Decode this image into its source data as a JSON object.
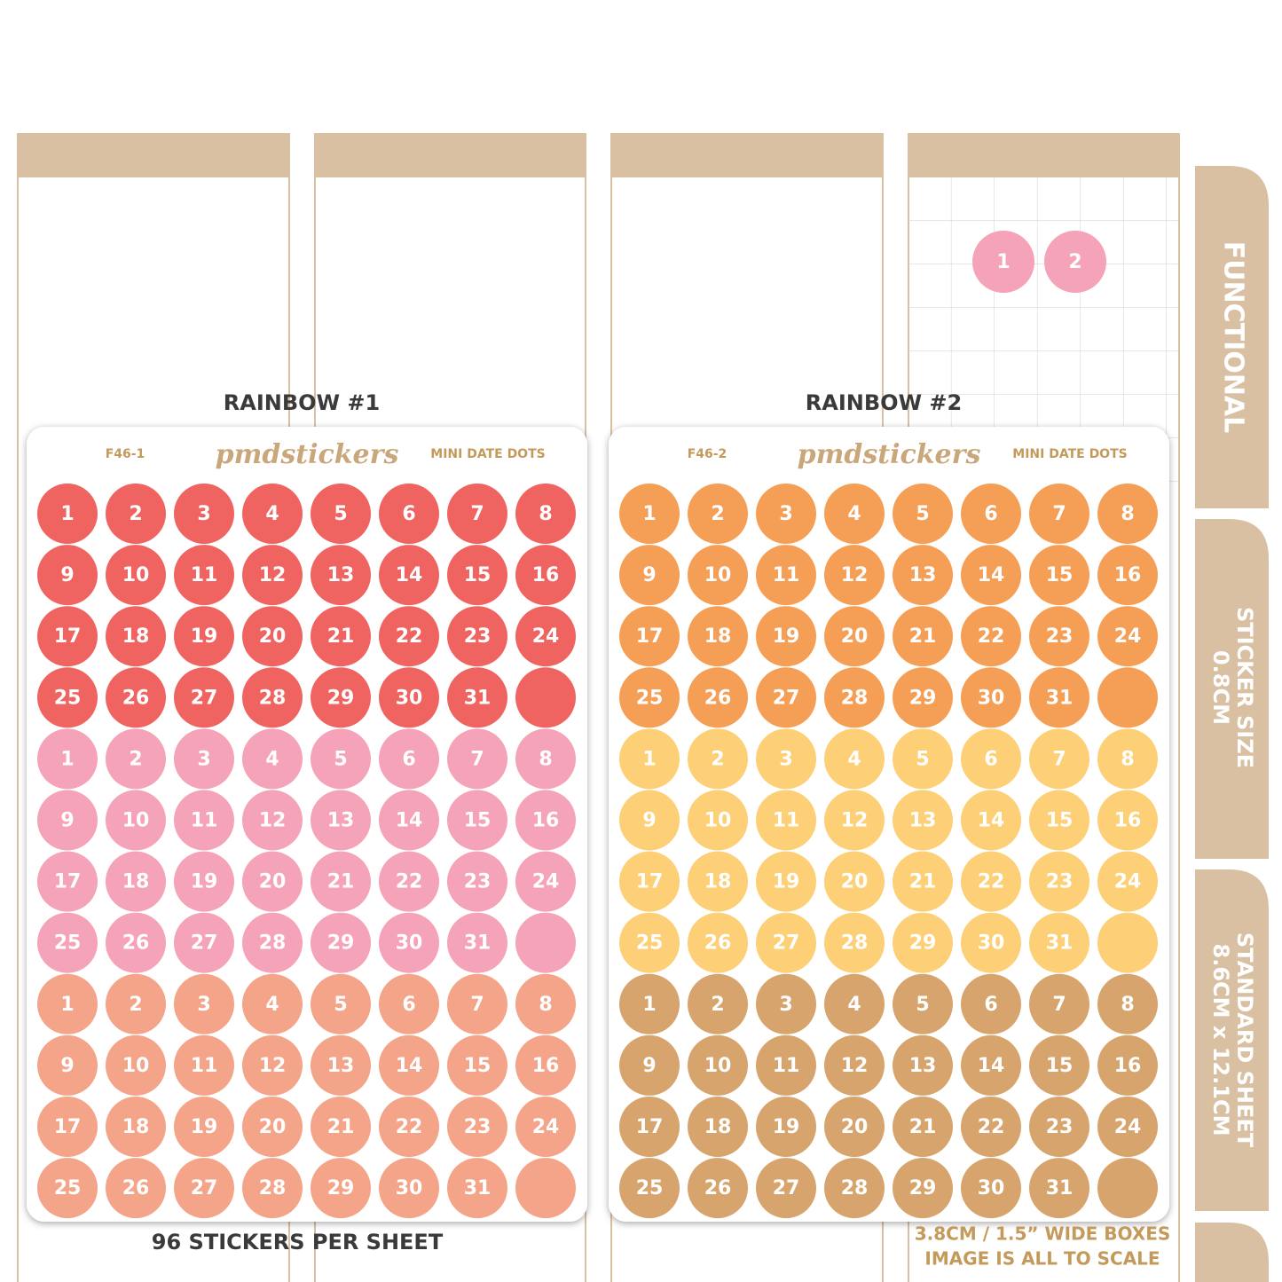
{
  "planner": {
    "preview_dots": [
      1,
      2
    ],
    "preview_color": "#f4a3b8"
  },
  "tabs": [
    {
      "lines": [
        "FUNCTIONAL"
      ]
    },
    {
      "lines": [
        "STICKER SIZE",
        "0.8CM"
      ]
    },
    {
      "lines": [
        "STANDARD SHEET",
        "8.6CM x 12.1CM"
      ]
    }
  ],
  "dot_labels": [
    1,
    2,
    3,
    4,
    5,
    6,
    7,
    8,
    9,
    10,
    11,
    12,
    13,
    14,
    15,
    16,
    17,
    18,
    19,
    20,
    21,
    22,
    23,
    24,
    25,
    26,
    27,
    28,
    29,
    30,
    31,
    null
  ],
  "sheets": [
    {
      "title": "RAINBOW #1",
      "code": "F46-1",
      "brand": "pmdstickers",
      "product": "MINI DATE DOTS",
      "block_colors": [
        "#ef6461",
        "#f4a3b8",
        "#f4a488"
      ]
    },
    {
      "title": "RAINBOW #2",
      "code": "F46-2",
      "brand": "pmdstickers",
      "product": "MINI DATE DOTS",
      "block_colors": [
        "#f59f56",
        "#fdd077",
        "#d6a46c"
      ]
    }
  ],
  "footer": {
    "left": "96 STICKERS PER SHEET",
    "right": [
      "3.8CM / 1.5” WIDE BOXES",
      "IMAGE IS ALL TO SCALE"
    ]
  }
}
